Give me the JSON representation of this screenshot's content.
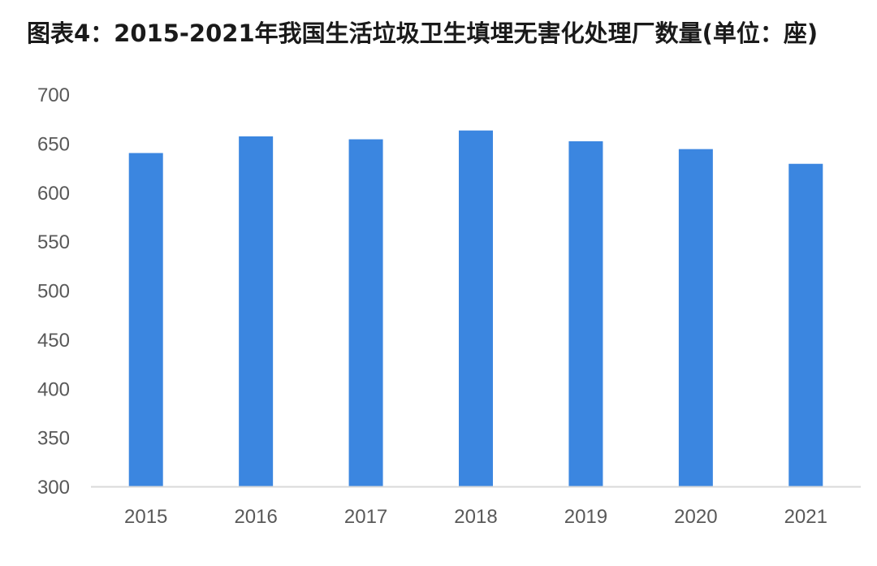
{
  "chart_data": {
    "type": "bar",
    "title": "图表4：2015-2021年我国生活垃圾卫生填埋无害化处理厂数量(单位：座)",
    "xlabel": "",
    "ylabel": "",
    "categories": [
      "2015",
      "2016",
      "2017",
      "2018",
      "2019",
      "2020",
      "2021"
    ],
    "values": [
      640,
      657,
      654,
      663,
      652,
      644,
      629
    ],
    "ylim": [
      300,
      700
    ],
    "yticks": [
      "300",
      "350",
      "400",
      "450",
      "500",
      "550",
      "600",
      "650",
      "700"
    ],
    "grid": false,
    "legend": "none",
    "bar_color": "#3b86e0",
    "axis_color": "#d9d9d9",
    "label_color": "#595959"
  }
}
